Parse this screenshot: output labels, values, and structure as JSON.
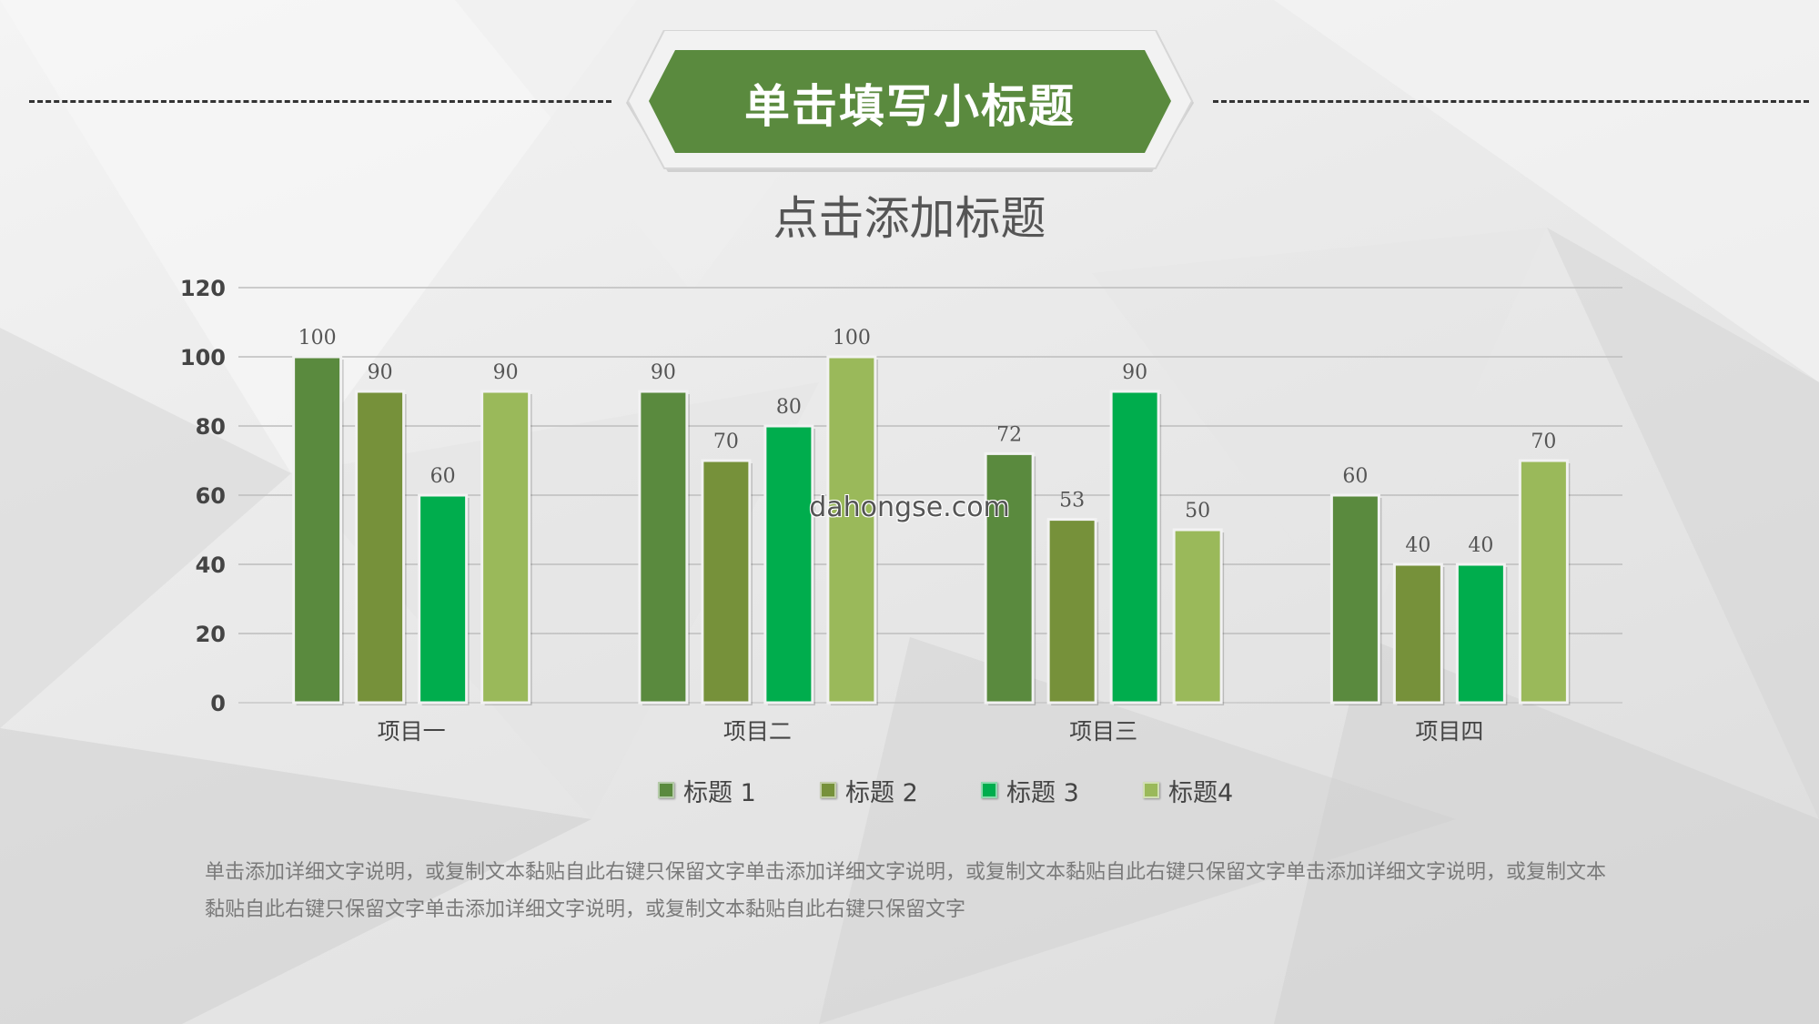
{
  "header": {
    "banner_title": "单击填写小标题"
  },
  "colors": {
    "banner": "#5a8a3e",
    "series": [
      "#5a8a3e",
      "#76913a",
      "#00ad4d",
      "#9ab95a"
    ]
  },
  "chart_data": {
    "type": "bar",
    "title": "点击添加标题",
    "categories": [
      "项目一",
      "项目二",
      "项目三",
      "项目四"
    ],
    "series": [
      {
        "name": "标题 1",
        "values": [
          100,
          90,
          72,
          60
        ]
      },
      {
        "name": "标题 2",
        "values": [
          90,
          70,
          53,
          40
        ]
      },
      {
        "name": "标题 3",
        "values": [
          60,
          80,
          90,
          40
        ]
      },
      {
        "name": "标题4",
        "values": [
          90,
          100,
          50,
          70
        ]
      }
    ],
    "ylim": [
      0,
      120
    ],
    "yticks": [
      0,
      20,
      40,
      60,
      80,
      100,
      120
    ],
    "grid": true,
    "legend_position": "bottom"
  },
  "watermark": "dahongse.com",
  "description": "单击添加详细文字说明，或复制文本黏贴自此右键只保留文字单击添加详细文字说明，或复制文本黏贴自此右键只保留文字单击添加详细文字说明，或复制文本黏贴自此右键只保留文字单击添加详细文字说明，或复制文本黏贴自此右键只保留文字"
}
